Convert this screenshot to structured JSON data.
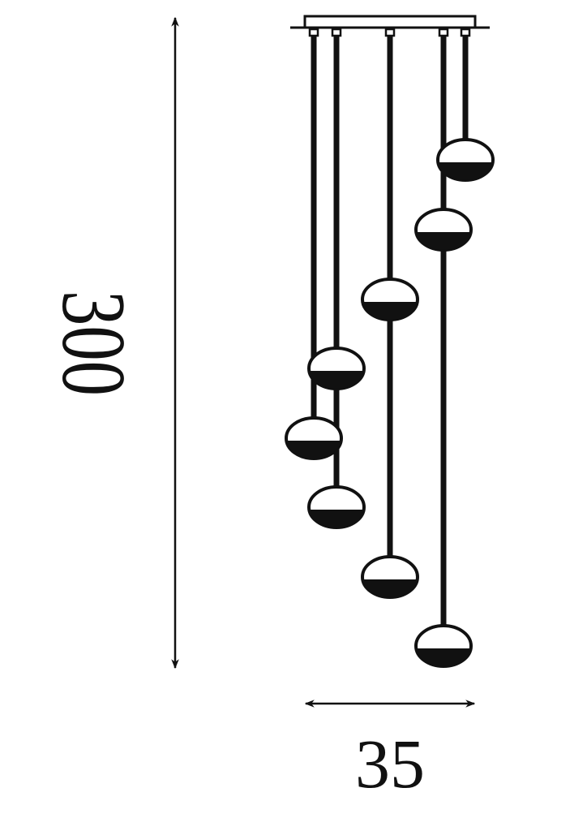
{
  "dimensions": {
    "height_label": "300",
    "width_label": "35"
  },
  "colors": {
    "line": "#111111",
    "background": "#ffffff"
  }
}
